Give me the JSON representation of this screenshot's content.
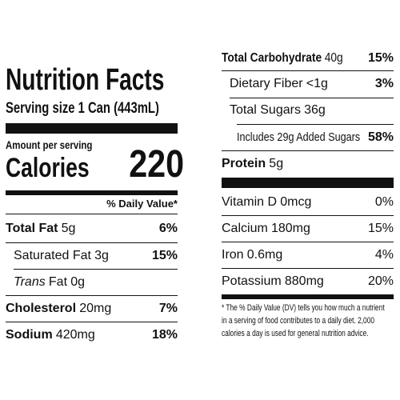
{
  "left": {
    "title": "Nutrition Facts",
    "serving_label": "Serving size",
    "serving_value": "1 Can (443mL)",
    "amount_label": "Amount per serving",
    "calories_label": "Calories",
    "calories_value": "220",
    "dv_header": "% Daily Value*",
    "nutrients": [
      {
        "name": "Total Fat",
        "amount": "5g",
        "dv": "6%"
      },
      {
        "name": "Saturated Fat",
        "amount": "3g",
        "dv": "15%"
      },
      {
        "name_italic": "Trans",
        "name_rest": "Fat",
        "amount": "0g"
      },
      {
        "name": "Cholesterol",
        "amount": "20mg",
        "dv": "7%"
      },
      {
        "name": "Sodium",
        "amount": "420mg",
        "dv": "18%"
      }
    ]
  },
  "right": {
    "carbs": {
      "name": "Total Carbohydrate",
      "amount": "40g",
      "dv": "15%"
    },
    "fiber": {
      "name": "Dietary Fiber",
      "amount": "<1g",
      "dv": "3%"
    },
    "sugars": {
      "name": "Total Sugars",
      "amount": "36g"
    },
    "added_sugars": {
      "text": "Includes 29g Added Sugars",
      "dv": "58%"
    },
    "protein": {
      "name": "Protein",
      "amount": "5g"
    },
    "vitamins": [
      {
        "name": "Vitamin D",
        "amount": "0mcg",
        "dv": "0%"
      },
      {
        "name": "Calcium",
        "amount": "180mg",
        "dv": "15%"
      },
      {
        "name": "Iron",
        "amount": "0.6mg",
        "dv": "4%"
      },
      {
        "name": "Potassium",
        "amount": "880mg",
        "dv": "20%"
      }
    ],
    "footnote_line1": "* The % Daily Value (DV) tells you how much a nutrient",
    "footnote_line2": "in a serving of food contributes to a daily diet. 2,000",
    "footnote_line3": "calories a day is used for general nutrition advice."
  }
}
